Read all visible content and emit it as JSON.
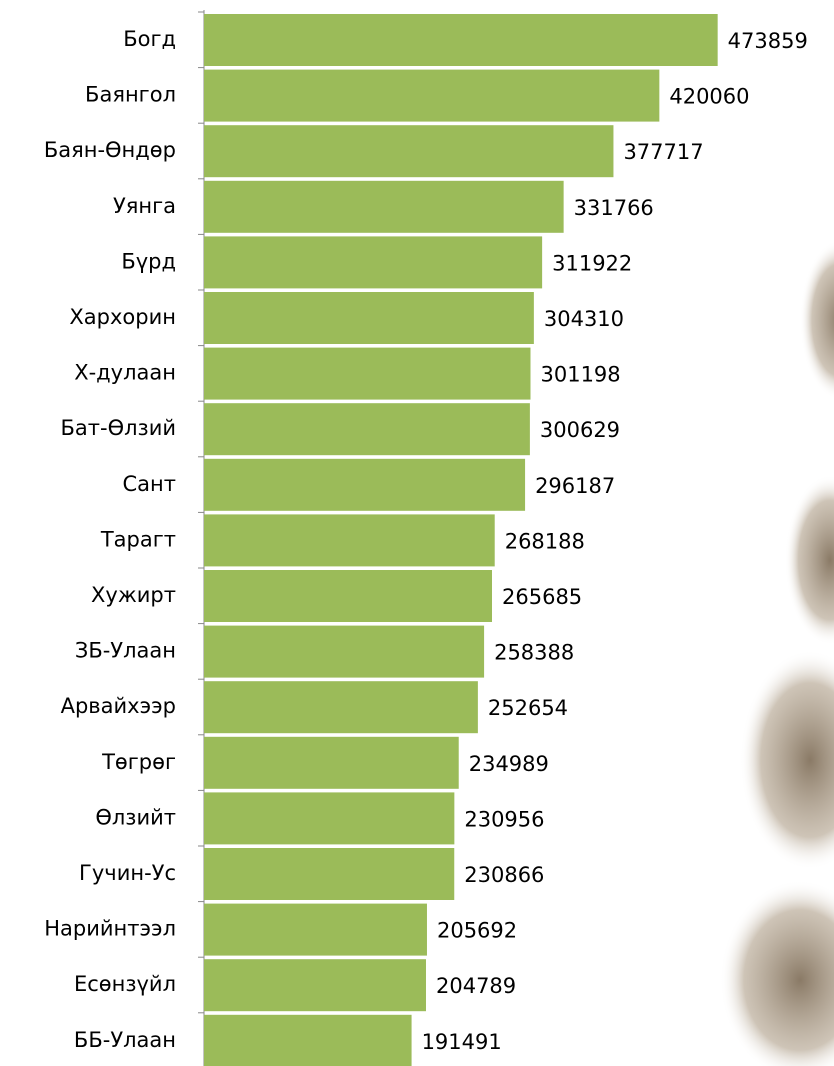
{
  "chart_data": {
    "type": "bar",
    "orientation": "horizontal",
    "categories": [
      "Богд",
      "Баянгол",
      "Баян-Өндөр",
      "Уянга",
      "Бүрд",
      "Хархорин",
      "Х-дулаан",
      "Бат-Өлзий",
      "Сант",
      "Тарагт",
      "Хужирт",
      "ЗБ-Улаан",
      "Арвайхээр",
      "Төгрөг",
      "Өлзийт",
      "Гучин-Ус",
      "Нарийнтээл",
      "Есөнзүйл",
      "ББ-Улаан"
    ],
    "values": [
      473859,
      420060,
      377717,
      331766,
      311922,
      304310,
      301198,
      300629,
      296187,
      268188,
      265685,
      258388,
      252654,
      234989,
      230956,
      230866,
      205692,
      204789,
      191491
    ],
    "color": "#9bbb59",
    "xlim": [
      0,
      500000
    ]
  }
}
